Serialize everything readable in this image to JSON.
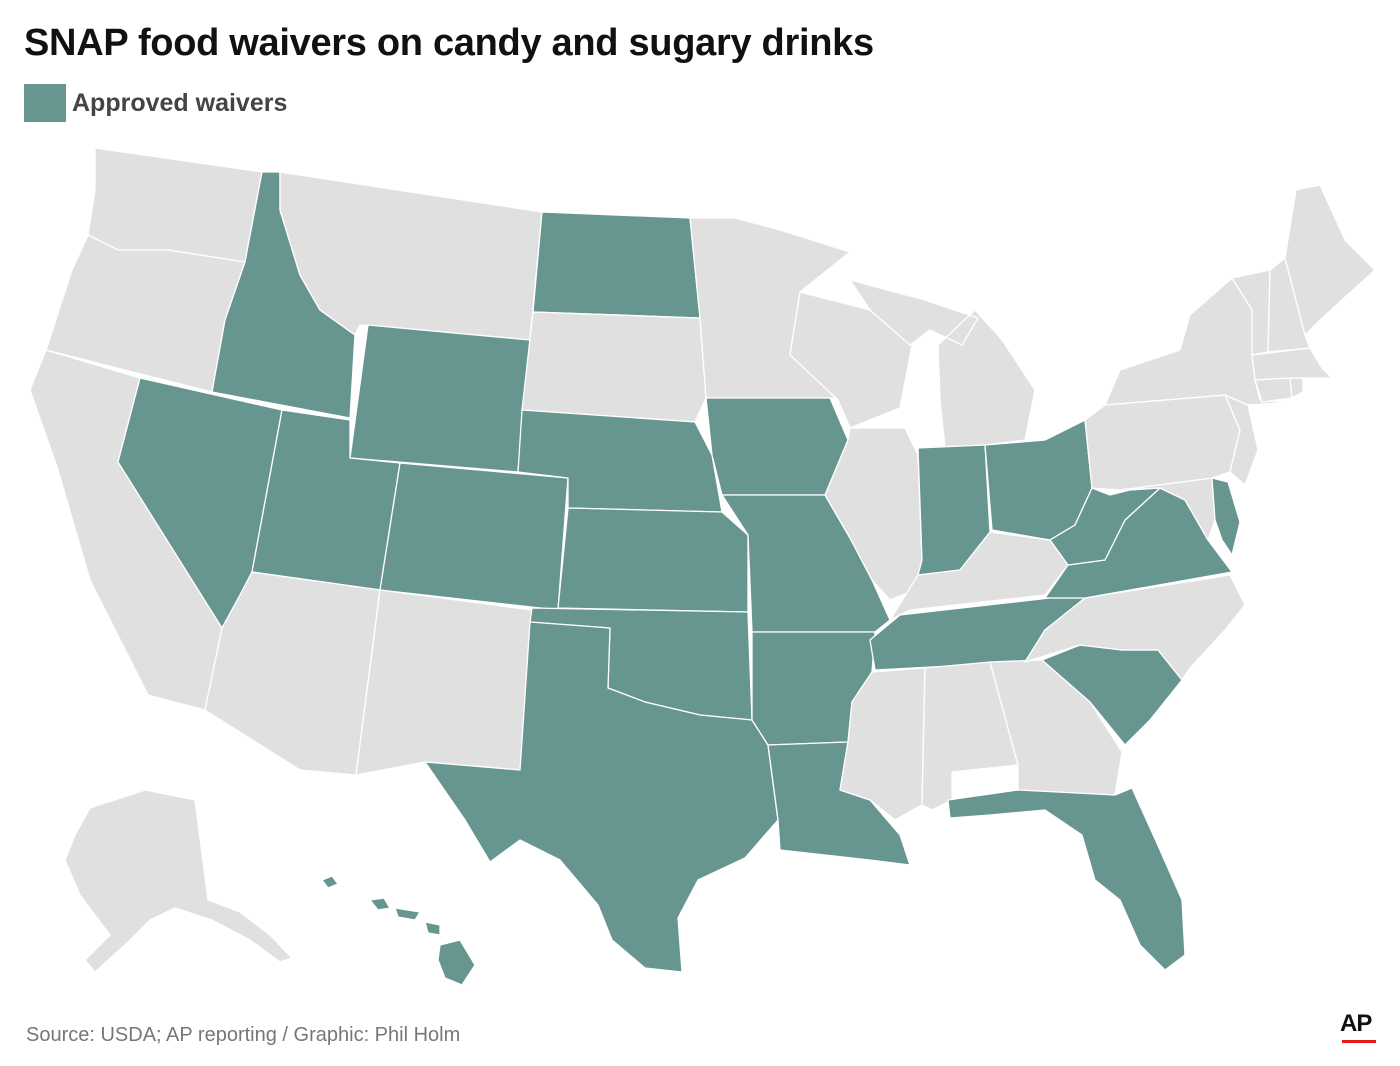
{
  "title": "SNAP food waivers on candy and sugary drinks",
  "legend": {
    "label": "Approved waivers",
    "color": "#67958f"
  },
  "colors": {
    "approved": "#67958f",
    "not_approved": "#e0e0e0",
    "border": "#ffffff",
    "ap_underline": "#e41a1c"
  },
  "map": {
    "region": "United States",
    "states": [
      {
        "name": "Washington",
        "approved": false
      },
      {
        "name": "Oregon",
        "approved": false
      },
      {
        "name": "California",
        "approved": false
      },
      {
        "name": "Idaho",
        "approved": true
      },
      {
        "name": "Nevada",
        "approved": true
      },
      {
        "name": "Montana",
        "approved": false
      },
      {
        "name": "Wyoming",
        "approved": true
      },
      {
        "name": "Utah",
        "approved": true
      },
      {
        "name": "Colorado",
        "approved": true
      },
      {
        "name": "Arizona",
        "approved": false
      },
      {
        "name": "New Mexico",
        "approved": false
      },
      {
        "name": "North Dakota",
        "approved": true
      },
      {
        "name": "South Dakota",
        "approved": false
      },
      {
        "name": "Nebraska",
        "approved": true
      },
      {
        "name": "Kansas",
        "approved": true
      },
      {
        "name": "Oklahoma",
        "approved": true
      },
      {
        "name": "Texas",
        "approved": true
      },
      {
        "name": "Minnesota",
        "approved": false
      },
      {
        "name": "Iowa",
        "approved": true
      },
      {
        "name": "Missouri",
        "approved": true
      },
      {
        "name": "Arkansas",
        "approved": true
      },
      {
        "name": "Louisiana",
        "approved": true
      },
      {
        "name": "Wisconsin",
        "approved": false
      },
      {
        "name": "Illinois",
        "approved": false
      },
      {
        "name": "Michigan",
        "approved": false
      },
      {
        "name": "Indiana",
        "approved": true
      },
      {
        "name": "Ohio",
        "approved": true
      },
      {
        "name": "Kentucky",
        "approved": false
      },
      {
        "name": "Tennessee",
        "approved": true
      },
      {
        "name": "Mississippi",
        "approved": false
      },
      {
        "name": "Alabama",
        "approved": false
      },
      {
        "name": "Georgia",
        "approved": false
      },
      {
        "name": "Florida",
        "approved": true
      },
      {
        "name": "South Carolina",
        "approved": true
      },
      {
        "name": "North Carolina",
        "approved": false
      },
      {
        "name": "Virginia",
        "approved": true
      },
      {
        "name": "West Virginia",
        "approved": true
      },
      {
        "name": "Maryland",
        "approved": false
      },
      {
        "name": "Delaware",
        "approved": true
      },
      {
        "name": "Pennsylvania",
        "approved": false
      },
      {
        "name": "New Jersey",
        "approved": false
      },
      {
        "name": "New York",
        "approved": false
      },
      {
        "name": "Connecticut",
        "approved": false
      },
      {
        "name": "Rhode Island",
        "approved": false
      },
      {
        "name": "Massachusetts",
        "approved": false
      },
      {
        "name": "Vermont",
        "approved": false
      },
      {
        "name": "New Hampshire",
        "approved": false
      },
      {
        "name": "Maine",
        "approved": false
      },
      {
        "name": "Alaska",
        "approved": false
      },
      {
        "name": "Hawaii",
        "approved": true
      }
    ]
  },
  "source": "Source: USDA; AP reporting / Graphic: Phil Holm",
  "logo": {
    "text": "AP"
  }
}
